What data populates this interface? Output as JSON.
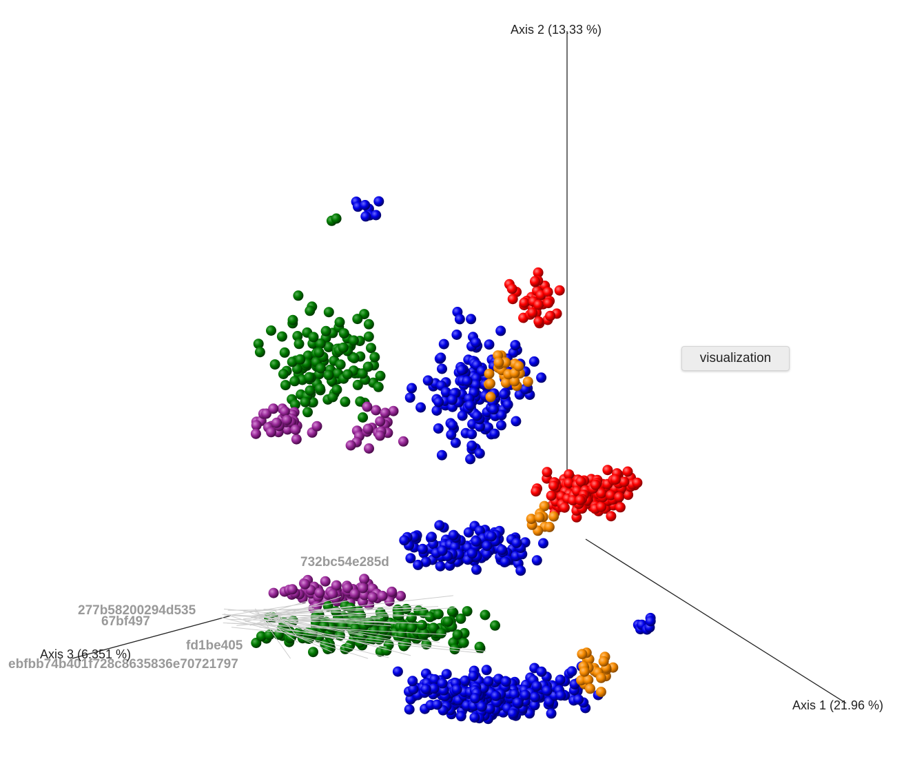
{
  "axes": {
    "axis1": "Axis 1 (21.96 %)",
    "axis2": "Axis 2 (13.33 %)",
    "axis3": "Axis 3 (6.351 %)"
  },
  "tooltip": "visualization",
  "sample_labels": [
    "732bc54e285d",
    "277b58200294d535",
    "67bf497",
    "fd1be405",
    "ebfbb74b401f728c8635836e70721797"
  ]
}
